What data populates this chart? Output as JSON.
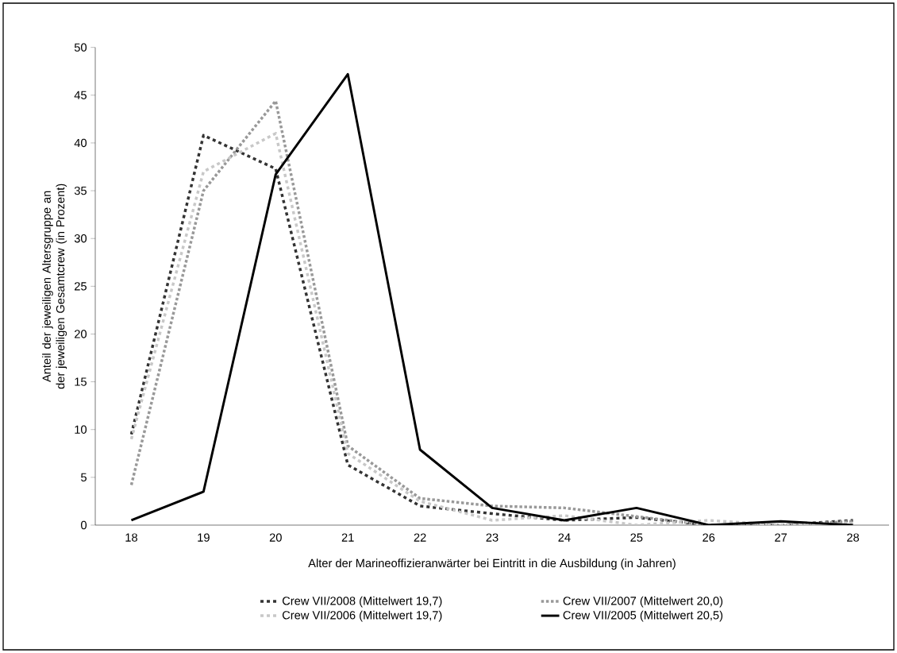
{
  "chart_data": {
    "type": "line",
    "xlabel": "Alter der Marineoffizieranwärter bei Eintritt in die Ausbildung (in Jahren)",
    "ylabel": "Anteil der jeweiligen Altersgruppe an der jeweiligen Gesamtcrew  (in Prozent)",
    "categories": [
      "18",
      "19",
      "20",
      "21",
      "22",
      "23",
      "24",
      "25",
      "26",
      "27",
      "28"
    ],
    "series": [
      {
        "name": "Crew VII/2008 (Mittelwert 19,7)",
        "color": "#333333",
        "line_style": "dashed",
        "values": [
          9.5,
          40.8,
          37.3,
          6.3,
          2.0,
          1.2,
          0.5,
          0.8,
          0,
          0,
          0.5
        ]
      },
      {
        "name": "Crew VII/2007 (Mittelwert 20,0)",
        "color": "#999999",
        "line_style": "dotted",
        "values": [
          4.2,
          35,
          44.4,
          8.3,
          2.8,
          2.0,
          1.8,
          0.9,
          0,
          0,
          0.4
        ]
      },
      {
        "name": "Crew VII/2006 (Mittelwert 19,7)",
        "color": "#c8c8c8",
        "line_style": "dashed",
        "values": [
          9.0,
          37,
          41,
          7.5,
          2.5,
          0.5,
          1.0,
          0,
          0.5,
          0,
          0.2
        ]
      },
      {
        "name": "Crew VII/2005 (Mittelwert 20,5)",
        "color": "#000000",
        "line_style": "solid",
        "values": [
          0.5,
          3.5,
          36.7,
          47.2,
          7.9,
          1.8,
          0.5,
          1.8,
          0,
          0.4,
          0
        ]
      }
    ],
    "ylim": [
      0,
      50
    ],
    "yticks": [
      0,
      5,
      10,
      15,
      20,
      25,
      30,
      35,
      40,
      45,
      50
    ],
    "grid": false,
    "legend": "bottom",
    "marker": "none"
  }
}
